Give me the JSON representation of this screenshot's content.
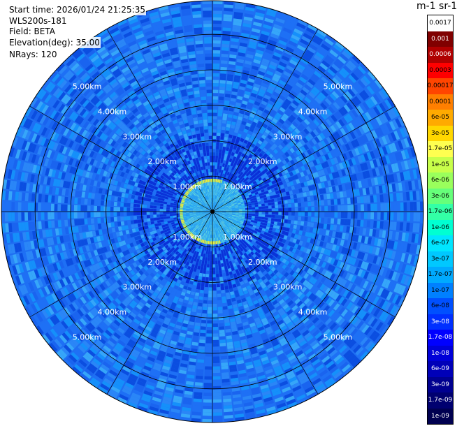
{
  "info": {
    "start_time": "Start time: 2026/01/24 21:25:35",
    "instrument": "WLS200s-181",
    "field": "Field: BETA",
    "elevation": "Elevation(deg): 35.00",
    "nrays": "NRays: 120"
  },
  "colorbar": {
    "title": "m-1 sr-1",
    "labels": [
      "0.0017",
      "0.001",
      "0.0006",
      "0.0003",
      "0.00017",
      "0.0001",
      "6e-05",
      "3e-05",
      "1.7e-05",
      "1e-05",
      "6e-06",
      "3e-06",
      "1.7e-06",
      "1e-06",
      "6e-07",
      "3e-07",
      "1.7e-07",
      "1e-07",
      "6e-08",
      "3e-08",
      "1.7e-08",
      "1e-08",
      "6e-09",
      "3e-09",
      "1.7e-09",
      "1e-09"
    ],
    "colors": [
      "#ffffff",
      "#800000",
      "#b00000",
      "#ff0000",
      "#ff4500",
      "#ff7f00",
      "#ffaa00",
      "#ffd700",
      "#ffff50",
      "#c8ff4a",
      "#9aff5c",
      "#66ff7a",
      "#33ffa6",
      "#00ffd2",
      "#00e6ff",
      "#00c8ff",
      "#00aaff",
      "#0080ff",
      "#0050ff",
      "#0030ff",
      "#0000ff",
      "#0000d8",
      "#0000b8",
      "#000090",
      "#000070",
      "#000050"
    ]
  },
  "chart_data": {
    "type": "heatmap",
    "projection": "polar PPI",
    "field": "BETA",
    "elevation_deg": 35.0,
    "n_rays": 120,
    "range_rings_km": [
      1.0,
      2.0,
      3.0,
      4.0,
      5.0
    ],
    "ring_labels": [
      "1.00km",
      "2.00km",
      "3.00km",
      "4.00km",
      "5.00km"
    ],
    "max_range_km": 5.95,
    "spoke_step_deg": 30,
    "colormap": "jet",
    "color_scale": "log",
    "value_range": [
      1e-09,
      0.0017
    ]
  }
}
